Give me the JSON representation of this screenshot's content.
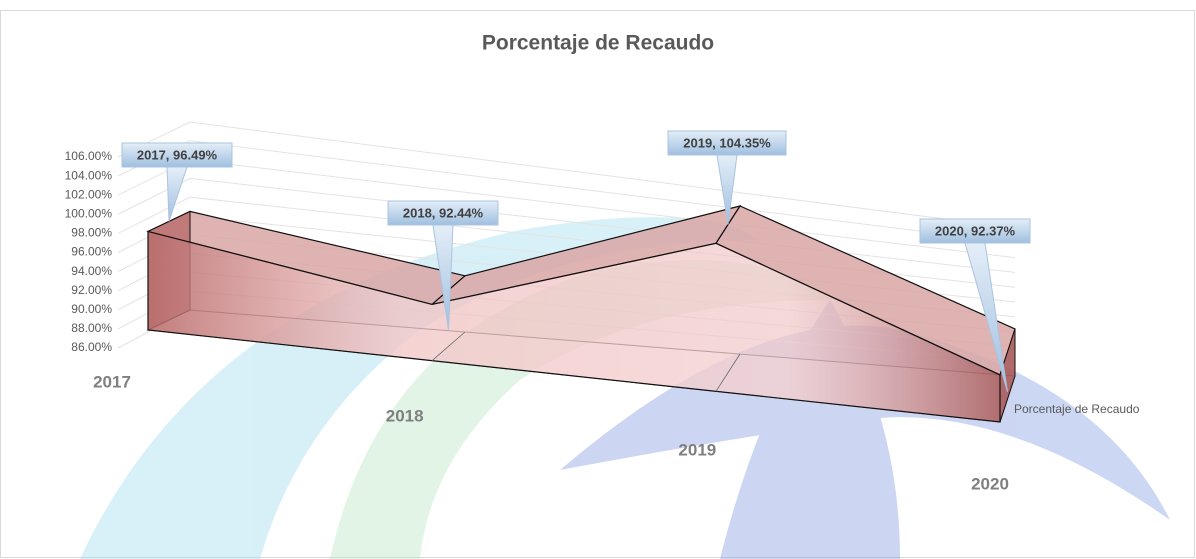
{
  "chart_data": {
    "type": "area3d",
    "title": "Porcentaje de Recaudo",
    "categories": [
      "2017",
      "2018",
      "2019",
      "2020"
    ],
    "series": [
      {
        "name": "Porcentaje de Recaudo",
        "color": "#c07a7a",
        "values": [
          96.49,
          92.44,
          104.35,
          92.37
        ],
        "value_labels": [
          "2017, 96.49%",
          "2018, 92.44%",
          "2019, 104.35%",
          "2020, 92.37%"
        ]
      }
    ],
    "ylim": [
      86,
      106
    ],
    "yticks": [
      {
        "value": 86,
        "label": "86.00%"
      },
      {
        "value": 88,
        "label": "88.00%"
      },
      {
        "value": 90,
        "label": "90.00%"
      },
      {
        "value": 92,
        "label": "92.00%"
      },
      {
        "value": 94,
        "label": "94.00%"
      },
      {
        "value": 96,
        "label": "96.00%"
      },
      {
        "value": 98,
        "label": "98.00%"
      },
      {
        "value": 100,
        "label": "100.00%"
      },
      {
        "value": 102,
        "label": "102.00%"
      },
      {
        "value": 104,
        "label": "104.00%"
      },
      {
        "value": 106,
        "label": "106.00%"
      }
    ],
    "grid": true
  }
}
